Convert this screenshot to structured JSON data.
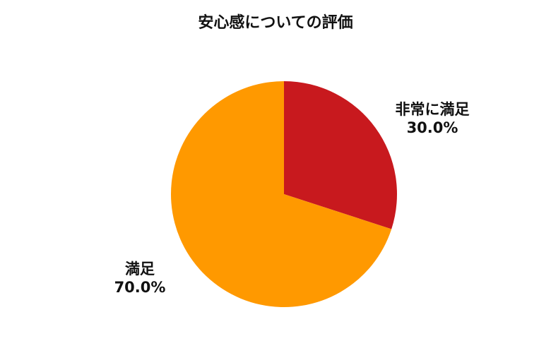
{
  "chart_data": {
    "type": "pie",
    "title": "安心感についての評価",
    "slices": [
      {
        "label": "非常に満足",
        "value": 30.0,
        "value_label": "30.0%",
        "color": "#C8191E"
      },
      {
        "label": "満足",
        "value": 70.0,
        "value_label": "70.0%",
        "color": "#FF9900"
      }
    ],
    "start_angle_deg": 0,
    "direction": "clockwise",
    "legend": "none"
  }
}
